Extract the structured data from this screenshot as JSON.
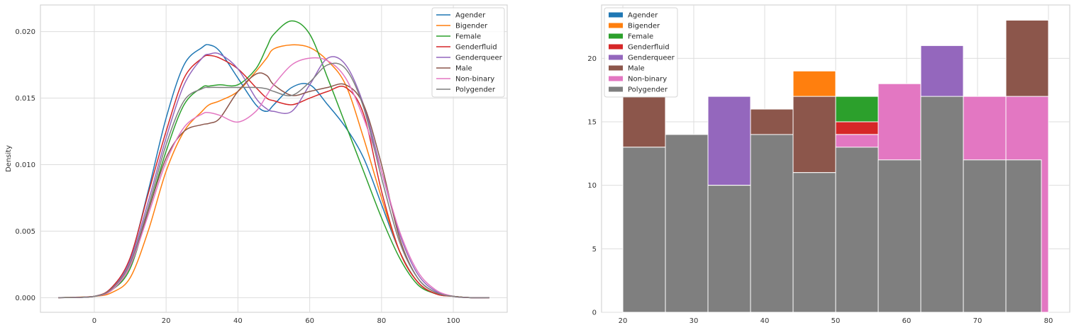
{
  "colors": {
    "Agender": "#1f77b4",
    "Bigender": "#ff7f0e",
    "Female": "#2ca02c",
    "Genderfluid": "#d62728",
    "Genderqueer": "#9467bd",
    "Male": "#8c564b",
    "Non-binary": "#e377c2",
    "Polygender": "#7f7f7f"
  },
  "chart_data": [
    {
      "type": "line",
      "ylabel": "Density",
      "xlim": [
        -15,
        115
      ],
      "ylim": [
        -0.0011,
        0.022
      ],
      "xticks": [
        0,
        20,
        40,
        60,
        80,
        100
      ],
      "yticks": [
        0.0,
        0.005,
        0.01,
        0.015,
        0.02
      ],
      "ytick_labels": [
        "0.000",
        "0.005",
        "0.010",
        "0.015",
        "0.020"
      ],
      "grid": true,
      "legend": "top-right",
      "x": [
        -10,
        0,
        5,
        10,
        15,
        20,
        25,
        30,
        32,
        35,
        40,
        45,
        48,
        50,
        55,
        60,
        65,
        70,
        75,
        80,
        85,
        90,
        95,
        100,
        105,
        110
      ],
      "series": [
        {
          "name": "Agender",
          "values": [
            0,
            0.0001,
            0.0008,
            0.003,
            0.008,
            0.0135,
            0.0175,
            0.0188,
            0.019,
            0.0185,
            0.0165,
            0.0145,
            0.014,
            0.0145,
            0.0158,
            0.016,
            0.0145,
            0.0128,
            0.0105,
            0.007,
            0.0035,
            0.0012,
            0.0003,
            0.0001,
            0,
            0
          ]
        },
        {
          "name": "Bigender",
          "values": [
            0,
            0.0001,
            0.0004,
            0.0015,
            0.005,
            0.0095,
            0.0125,
            0.014,
            0.0145,
            0.0148,
            0.0155,
            0.017,
            0.018,
            0.0187,
            0.019,
            0.0188,
            0.0178,
            0.016,
            0.012,
            0.0075,
            0.0035,
            0.0012,
            0.0003,
            0.0001,
            0,
            0
          ]
        },
        {
          "name": "Female",
          "values": [
            0,
            0.0001,
            0.0006,
            0.0022,
            0.0065,
            0.011,
            0.0145,
            0.0158,
            0.0159,
            0.016,
            0.016,
            0.0172,
            0.0188,
            0.0198,
            0.0208,
            0.0198,
            0.0165,
            0.013,
            0.0095,
            0.006,
            0.003,
            0.001,
            0.0003,
            0.0001,
            0,
            0
          ]
        },
        {
          "name": "Genderfluid",
          "values": [
            0,
            0.0001,
            0.0008,
            0.003,
            0.0078,
            0.0125,
            0.0165,
            0.018,
            0.0182,
            0.018,
            0.0172,
            0.0158,
            0.015,
            0.0148,
            0.0145,
            0.015,
            0.0155,
            0.0158,
            0.0138,
            0.008,
            0.0035,
            0.0012,
            0.0003,
            0.0001,
            0,
            0
          ]
        },
        {
          "name": "Genderqueer",
          "values": [
            0,
            0.0001,
            0.0007,
            0.0028,
            0.0072,
            0.012,
            0.016,
            0.018,
            0.0183,
            0.0183,
            0.0172,
            0.015,
            0.0142,
            0.014,
            0.014,
            0.016,
            0.018,
            0.0175,
            0.0145,
            0.0095,
            0.0048,
            0.0018,
            0.0005,
            0.0001,
            0,
            0
          ]
        },
        {
          "name": "Male",
          "values": [
            0,
            0.0001,
            0.0006,
            0.0024,
            0.0065,
            0.0105,
            0.0125,
            0.013,
            0.0131,
            0.0135,
            0.0155,
            0.0168,
            0.0167,
            0.016,
            0.0152,
            0.0155,
            0.0158,
            0.016,
            0.0145,
            0.01,
            0.0045,
            0.0015,
            0.0004,
            0.0001,
            0,
            0
          ]
        },
        {
          "name": "Non-binary",
          "values": [
            0,
            0.0001,
            0.0006,
            0.0024,
            0.0062,
            0.0102,
            0.0128,
            0.0138,
            0.0139,
            0.0137,
            0.0132,
            0.014,
            0.0152,
            0.016,
            0.0175,
            0.018,
            0.0178,
            0.0165,
            0.0135,
            0.0095,
            0.005,
            0.002,
            0.0006,
            0.0001,
            0,
            0
          ]
        },
        {
          "name": "Polygender",
          "values": [
            0,
            0.0001,
            0.0007,
            0.0026,
            0.0068,
            0.0115,
            0.0148,
            0.0157,
            0.0158,
            0.0158,
            0.0158,
            0.0158,
            0.0157,
            0.0155,
            0.0152,
            0.0162,
            0.0175,
            0.0172,
            0.0143,
            0.009,
            0.0042,
            0.0015,
            0.0004,
            0.0001,
            0,
            0
          ]
        }
      ]
    },
    {
      "type": "bar",
      "xlim": [
        17,
        83
      ],
      "ylim": [
        0,
        24.2
      ],
      "xticks": [
        20,
        30,
        40,
        50,
        60,
        70,
        80
      ],
      "yticks": [
        0,
        5,
        10,
        15,
        20
      ],
      "grid": true,
      "legend": "top-left",
      "series": [
        {
          "name": "Agender",
          "bins": [
            [
              20,
              26,
              17
            ],
            [
              26,
              32,
              12
            ],
            [
              32,
              38,
              17
            ],
            [
              38,
              44,
              16
            ],
            [
              44,
              50,
              13
            ],
            [
              50,
              56,
              15
            ],
            [
              56,
              62,
              17
            ],
            [
              62,
              68,
              17
            ],
            [
              68,
              74,
              16
            ],
            [
              74,
              80,
              17
            ]
          ]
        },
        {
          "name": "Bigender",
          "bins": [
            [
              20,
              26,
              13
            ],
            [
              26,
              32,
              12
            ],
            [
              32,
              38,
              13
            ],
            [
              38,
              44,
              13
            ],
            [
              44,
              50,
              19
            ],
            [
              50,
              56,
              14
            ],
            [
              56,
              62,
              12
            ],
            [
              62,
              68,
              15
            ],
            [
              68,
              74,
              14
            ],
            [
              74,
              80,
              13
            ]
          ]
        },
        {
          "name": "Female",
          "bins": [
            [
              20,
              26,
              14
            ],
            [
              26,
              32,
              12
            ],
            [
              32,
              38,
              15
            ],
            [
              38,
              44,
              13
            ],
            [
              44,
              50,
              15
            ],
            [
              50,
              56,
              17
            ],
            [
              56,
              62,
              13
            ],
            [
              62,
              68,
              16
            ],
            [
              68,
              74,
              13
            ],
            [
              74,
              80,
              14
            ]
          ]
        },
        {
          "name": "Genderfluid",
          "bins": [
            [
              20,
              26,
              15
            ],
            [
              26,
              32,
              13
            ],
            [
              32,
              38,
              14
            ],
            [
              38,
              44,
              15
            ],
            [
              44,
              50,
              14
            ],
            [
              50,
              56,
              15
            ],
            [
              56,
              62,
              14
            ],
            [
              62,
              68,
              15
            ],
            [
              68,
              74,
              14
            ],
            [
              74,
              80,
              15
            ]
          ]
        },
        {
          "name": "Genderqueer",
          "bins": [
            [
              20,
              26,
              14
            ],
            [
              26,
              32,
              12
            ],
            [
              32,
              38,
              17
            ],
            [
              38,
              44,
              14
            ],
            [
              44,
              50,
              13
            ],
            [
              50,
              56,
              14
            ],
            [
              56,
              62,
              16
            ],
            [
              62,
              68,
              21
            ],
            [
              68,
              74,
              15
            ],
            [
              74,
              80,
              16
            ]
          ]
        },
        {
          "name": "Male",
          "bins": [
            [
              20,
              26,
              17
            ],
            [
              26,
              32,
              12
            ],
            [
              32,
              38,
              10
            ],
            [
              38,
              44,
              16
            ],
            [
              44,
              50,
              17
            ],
            [
              50,
              56,
              13
            ],
            [
              56,
              62,
              15
            ],
            [
              62,
              68,
              15
            ],
            [
              68,
              74,
              16
            ],
            [
              74,
              80,
              23
            ]
          ]
        },
        {
          "name": "Non-binary",
          "bins": [
            [
              20,
              26,
              13
            ],
            [
              26,
              32,
              11
            ],
            [
              32,
              38,
              10
            ],
            [
              38,
              44,
              13
            ],
            [
              44,
              50,
              11
            ],
            [
              50,
              56,
              14
            ],
            [
              56,
              62,
              18
            ],
            [
              62,
              68,
              15
            ],
            [
              68,
              74,
              17
            ],
            [
              74,
              80,
              17
            ]
          ]
        },
        {
          "name": "Polygender",
          "bins": [
            [
              20,
              26,
              13
            ],
            [
              26,
              32,
              14
            ],
            [
              32,
              38,
              10
            ],
            [
              38,
              44,
              14
            ],
            [
              44,
              50,
              11
            ],
            [
              50,
              56,
              13
            ],
            [
              56,
              62,
              12
            ],
            [
              62,
              68,
              17
            ],
            [
              68,
              74,
              12
            ],
            [
              74,
              79,
              12
            ]
          ]
        }
      ]
    }
  ]
}
